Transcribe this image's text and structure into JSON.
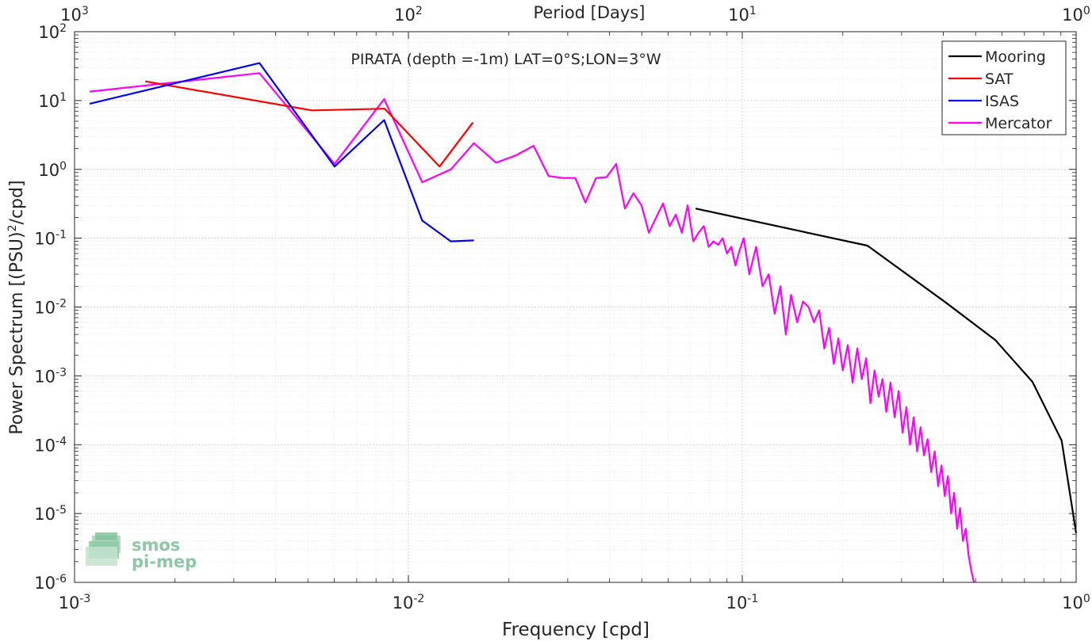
{
  "chart_data": {
    "type": "line",
    "title": "PIRATA (depth =-1m) LAT=0°S;LON=3°W",
    "xlabel": "Frequency [cpd]",
    "ylabel_main": "Power Spectrum [(PSU)",
    "ylabel_sup": "2",
    "ylabel_end": "/cpd]",
    "top_axis_label": "Period [Days]",
    "x_scale": "log",
    "y_scale": "log",
    "xlim": [
      0.001,
      1.0
    ],
    "ylim": [
      1e-06,
      100
    ],
    "grid": true,
    "legend_position": "top-right",
    "x_ticks": [
      {
        "value": 0.001,
        "base": "10",
        "exp": "-3"
      },
      {
        "value": 0.01,
        "base": "10",
        "exp": "-2"
      },
      {
        "value": 0.1,
        "base": "10",
        "exp": "-1"
      },
      {
        "value": 1.0,
        "base": "10",
        "exp": "0"
      }
    ],
    "y_ticks": [
      {
        "value": 100,
        "base": "10",
        "exp": "2"
      },
      {
        "value": 10,
        "base": "10",
        "exp": "1"
      },
      {
        "value": 1,
        "base": "10",
        "exp": "0"
      },
      {
        "value": 0.1,
        "base": "10",
        "exp": "-1"
      },
      {
        "value": 0.01,
        "base": "10",
        "exp": "-2"
      },
      {
        "value": 0.001,
        "base": "10",
        "exp": "-3"
      },
      {
        "value": 0.0001,
        "base": "10",
        "exp": "-4"
      },
      {
        "value": 1e-05,
        "base": "10",
        "exp": "-5"
      },
      {
        "value": 1e-06,
        "base": "10",
        "exp": "-6"
      }
    ],
    "top_ticks": [
      {
        "value": 0.001,
        "base": "10",
        "exp": "3"
      },
      {
        "value": 0.01,
        "base": "10",
        "exp": "2"
      },
      {
        "value": 0.1,
        "base": "10",
        "exp": "1"
      },
      {
        "value": 1.0,
        "base": "10",
        "exp": "0"
      }
    ],
    "series": [
      {
        "name": "Mooring",
        "color": "#000000",
        "x": [
          0.0725,
          0.237,
          0.408,
          0.573,
          0.74,
          0.905,
          1.0
        ],
        "y": [
          0.27,
          0.078,
          0.0115,
          0.0033,
          0.00082,
          0.000115,
          5.2e-06
        ]
      },
      {
        "name": "SAT",
        "color": "#ff0000",
        "x": [
          0.00163,
          0.00514,
          0.00849,
          0.0124,
          0.0156
        ],
        "y": [
          19,
          7.2,
          7.6,
          1.1,
          4.8
        ]
      },
      {
        "name": "ISAS",
        "color": "#0000ff",
        "x": [
          0.00111,
          0.00358,
          0.00601,
          0.00846,
          0.011,
          0.0134,
          0.0157
        ],
        "y": [
          9,
          35,
          1.1,
          5.2,
          0.18,
          0.09,
          0.093
        ]
      },
      {
        "name": "Mercator",
        "color": "#ff00ff",
        "x": [
          0.00111,
          0.00358,
          0.00601,
          0.00846,
          0.011,
          0.0134,
          0.0157,
          0.0183,
          0.021,
          0.0237,
          0.0263,
          0.029,
          0.0316,
          0.0339,
          0.0365,
          0.0392,
          0.0419,
          0.0445,
          0.0472,
          0.0499,
          0.0525,
          0.0552,
          0.0579,
          0.0606,
          0.0632,
          0.0659,
          0.0686,
          0.0713,
          0.074,
          0.0767,
          0.0793,
          0.082,
          0.0847,
          0.0873,
          0.09,
          0.0927,
          0.0954,
          0.098,
          0.101,
          0.105,
          0.11,
          0.115,
          0.12,
          0.125,
          0.13,
          0.135,
          0.14,
          0.146,
          0.152,
          0.158,
          0.164,
          0.17,
          0.176,
          0.182,
          0.188,
          0.194,
          0.2,
          0.207,
          0.214,
          0.221,
          0.228,
          0.235,
          0.242,
          0.249,
          0.256,
          0.263,
          0.27,
          0.278,
          0.286,
          0.294,
          0.302,
          0.31,
          0.318,
          0.326,
          0.334,
          0.342,
          0.35,
          0.359,
          0.368,
          0.377,
          0.386,
          0.395,
          0.404,
          0.413,
          0.422,
          0.431,
          0.44,
          0.449,
          0.458,
          0.467,
          0.476,
          0.485,
          0.494
        ],
        "y": [
          13.5,
          25,
          1.2,
          10.5,
          0.65,
          1.0,
          2.4,
          1.25,
          1.6,
          2.2,
          0.8,
          0.75,
          0.75,
          0.33,
          0.75,
          0.77,
          1.2,
          0.27,
          0.45,
          0.3,
          0.12,
          0.2,
          0.32,
          0.15,
          0.22,
          0.12,
          0.3,
          0.09,
          0.12,
          0.15,
          0.075,
          0.09,
          0.08,
          0.1,
          0.06,
          0.075,
          0.04,
          0.065,
          0.1,
          0.03,
          0.075,
          0.02,
          0.03,
          0.008,
          0.02,
          0.004,
          0.015,
          0.006,
          0.012,
          0.01,
          0.006,
          0.009,
          0.0025,
          0.005,
          0.0015,
          0.0035,
          0.0012,
          0.0028,
          0.0008,
          0.0025,
          0.0009,
          0.0018,
          0.0004,
          0.0012,
          0.0005,
          0.0009,
          0.0003,
          0.0008,
          0.00025,
          0.0006,
          0.00015,
          0.00035,
          0.0001,
          0.00025,
          8e-05,
          0.00018,
          7e-05,
          0.00012,
          4e-05,
          8e-05,
          2.5e-05,
          5e-05,
          1.8e-05,
          3.5e-05,
          1e-05,
          2e-05,
          6e-06,
          1.2e-05,
          4e-06,
          6e-06,
          2.5e-06,
          1.5e-06,
          1e-06
        ]
      }
    ]
  },
  "watermark": {
    "line1": "smos",
    "line2": "pi-mep",
    "color": "#7fbf9a"
  }
}
